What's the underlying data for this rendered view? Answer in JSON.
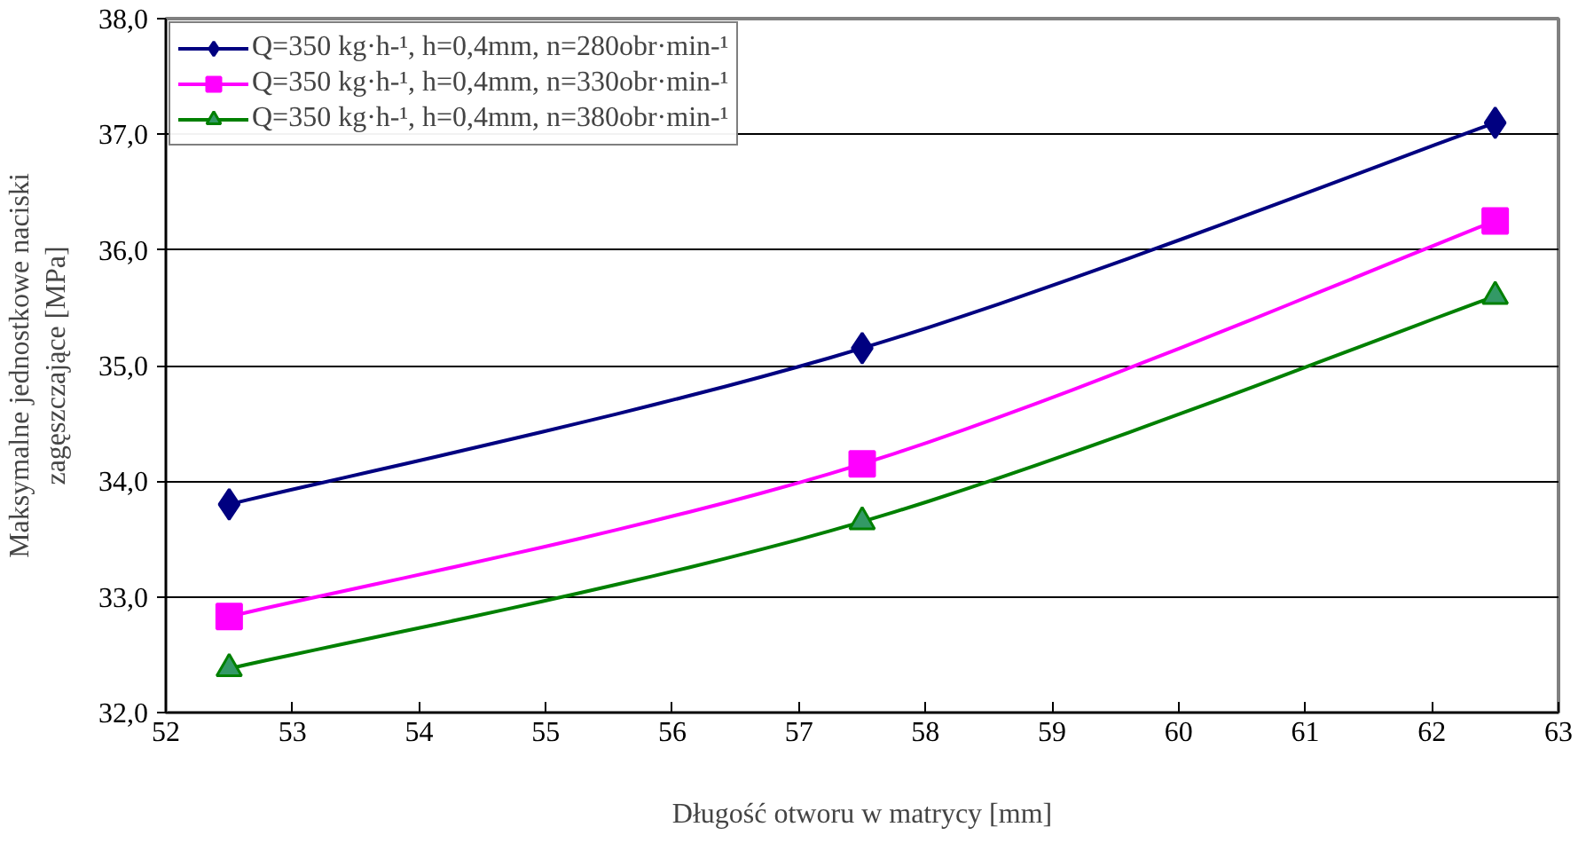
{
  "chart_data": {
    "type": "line",
    "xlabel": "Długość otworu w matrycy [mm]",
    "ylabel": "Maksymalne jednostkowe naciski zagęszczające [MPa]",
    "x": [
      52.5,
      57.5,
      62.5
    ],
    "series": [
      {
        "name": "Q=350 kg·h-¹, h=0,4mm, n=280obr·min-¹",
        "color": "#000080",
        "marker": "diamond",
        "values": [
          33.8,
          35.15,
          37.1
        ]
      },
      {
        "name": "Q=350 kg·h-¹, h=0,4mm, n=330obr·min-¹",
        "color": "#ff00ff",
        "marker": "square",
        "values": [
          32.83,
          34.15,
          36.25
        ]
      },
      {
        "name": "Q=350 kg·h-¹, h=0,4mm, n=380obr·min-¹",
        "color": "#008000",
        "marker": "triangle",
        "values": [
          32.38,
          33.65,
          35.6
        ]
      }
    ],
    "xlim": [
      52,
      63
    ],
    "xticks": [
      52,
      53,
      54,
      55,
      56,
      57,
      58,
      59,
      60,
      61,
      62,
      63
    ],
    "ylim": [
      32,
      38
    ],
    "yticks": [
      {
        "value": 32,
        "label": "32,0"
      },
      {
        "value": 33,
        "label": "33,0"
      },
      {
        "value": 34,
        "label": "34,0"
      },
      {
        "value": 35,
        "label": "35,0"
      },
      {
        "value": 36,
        "label": "36,0"
      },
      {
        "value": 37,
        "label": "37,0"
      },
      {
        "value": 38,
        "label": "38,0"
      }
    ],
    "grid": "y",
    "legend": "top left",
    "line_style": "solid"
  }
}
